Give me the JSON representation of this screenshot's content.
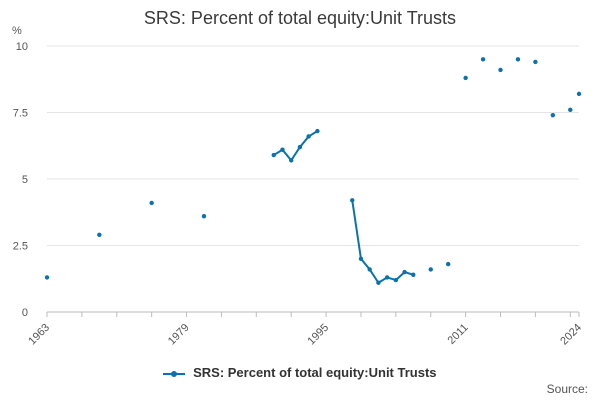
{
  "chart_data": {
    "type": "line",
    "title": "SRS: Percent of total equity:Unit Trusts",
    "ylabel": "%",
    "xlabel": "",
    "xlim": [
      1963,
      2024
    ],
    "ylim": [
      0,
      10
    ],
    "x_ticks": [
      "1963",
      "1979",
      "1995",
      "2011",
      "2024"
    ],
    "y_ticks": [
      "0",
      "2.5",
      "5",
      "7.5",
      "10"
    ],
    "grid": true,
    "legend_position": "bottom",
    "series": [
      {
        "name": "SRS: Percent of total equity:Unit Trusts",
        "color": "#0a72ad",
        "points": [
          {
            "x": 1963,
            "y": 1.3
          },
          {
            "x": 1969,
            "y": 2.9
          },
          {
            "x": 1975,
            "y": 4.1
          },
          {
            "x": 1981,
            "y": 3.6
          },
          {
            "x": 1989,
            "y": 5.9
          },
          {
            "x": 1990,
            "y": 6.1
          },
          {
            "x": 1991,
            "y": 5.7
          },
          {
            "x": 1992,
            "y": 6.2
          },
          {
            "x": 1993,
            "y": 6.6
          },
          {
            "x": 1994,
            "y": 6.8
          },
          {
            "x": 1998,
            "y": 4.2
          },
          {
            "x": 1999,
            "y": 2.0
          },
          {
            "x": 2000,
            "y": 1.6
          },
          {
            "x": 2001,
            "y": 1.1
          },
          {
            "x": 2002,
            "y": 1.3
          },
          {
            "x": 2003,
            "y": 1.2
          },
          {
            "x": 2004,
            "y": 1.5
          },
          {
            "x": 2005,
            "y": 1.4
          },
          {
            "x": 2007,
            "y": 1.6
          },
          {
            "x": 2009,
            "y": 1.8
          },
          {
            "x": 2011,
            "y": 8.8
          },
          {
            "x": 2013,
            "y": 9.5
          },
          {
            "x": 2015,
            "y": 9.1
          },
          {
            "x": 2017,
            "y": 9.5
          },
          {
            "x": 2019,
            "y": 9.4
          },
          {
            "x": 2021,
            "y": 7.4
          },
          {
            "x": 2023,
            "y": 7.6
          },
          {
            "x": 2024,
            "y": 8.2
          }
        ],
        "connected_segments": [
          [
            4,
            9
          ],
          [
            10,
            17
          ]
        ]
      }
    ]
  },
  "legend": {
    "label": "SRS: Percent of total equity:Unit Trusts"
  },
  "source": {
    "text": "Source:"
  }
}
